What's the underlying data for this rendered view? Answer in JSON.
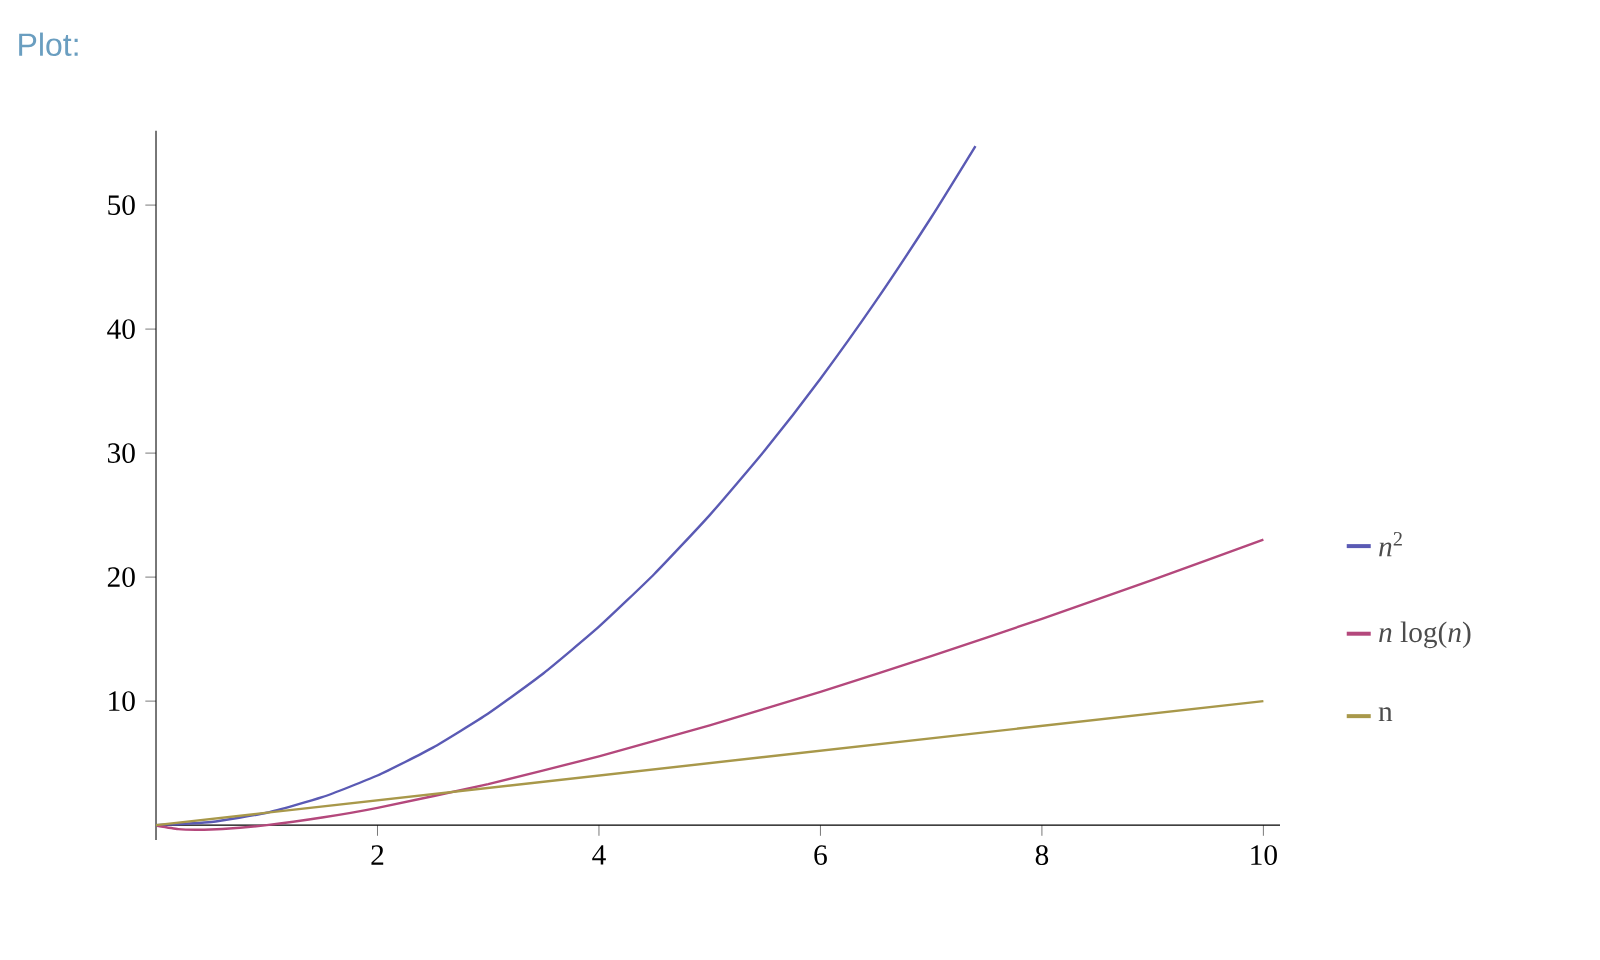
{
  "chart_data": {
    "type": "line",
    "title": "Plot:",
    "xlim": [
      0,
      10.15
    ],
    "ylim": [
      -1.2,
      56
    ],
    "xticks": [
      2,
      4,
      6,
      8,
      10
    ],
    "yticks": [
      10,
      20,
      30,
      40,
      50
    ],
    "legend": "right",
    "series": [
      {
        "name": "*n*$^{2}$",
        "color": "#5a5ab4",
        "x": [
          0,
          0.5,
          1,
          1.5,
          2,
          2.5,
          3,
          3.5,
          4,
          4.5,
          5,
          5.5,
          6,
          6.5,
          7,
          7.4
        ],
        "values": [
          0,
          0.25,
          1,
          2.25,
          4,
          6.25,
          9,
          12.25,
          16,
          20.25,
          25,
          30.25,
          36,
          42.25,
          49,
          54.76
        ]
      },
      {
        "name": "*n* log(*n*)",
        "color": "#b4487c",
        "x": [
          0.01,
          0.2,
          0.37,
          0.6,
          1,
          1.5,
          2,
          3,
          4,
          5,
          6,
          7,
          8,
          9,
          10
        ],
        "values": [
          -0.05,
          -0.32,
          -0.37,
          -0.31,
          0,
          0.61,
          1.39,
          3.3,
          5.55,
          8.05,
          10.75,
          13.62,
          16.64,
          19.78,
          23.03
        ]
      },
      {
        "name": "n",
        "color": "#a8984a",
        "x": [
          0,
          10
        ],
        "values": [
          0,
          10
        ]
      }
    ]
  }
}
